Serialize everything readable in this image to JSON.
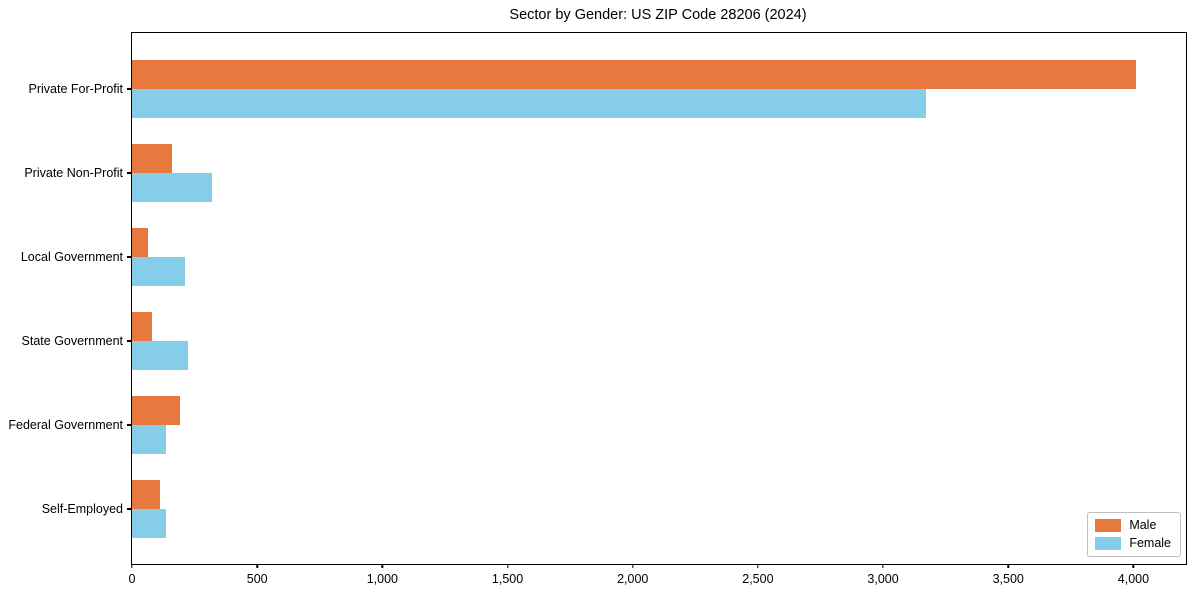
{
  "chart_data": {
    "type": "bar",
    "orientation": "horizontal",
    "title": "Sector by Gender: US ZIP Code 28206 (2024)",
    "categories": [
      "Private For-Profit",
      "Private Non-Profit",
      "Local Government",
      "State Government",
      "Federal Government",
      "Self-Employed"
    ],
    "series": [
      {
        "name": "Male",
        "color": "#e8793e",
        "values": [
          4010,
          160,
          65,
          80,
          190,
          110
        ]
      },
      {
        "name": "Female",
        "color": "#85cde8",
        "values": [
          3170,
          320,
          210,
          225,
          135,
          135
        ]
      }
    ],
    "xlabel": "",
    "ylabel": "",
    "xlim": [
      0,
      4210
    ],
    "x_ticks": [
      0,
      500,
      1000,
      1500,
      2000,
      2500,
      3000,
      3500,
      4000
    ],
    "x_tick_labels": [
      "0",
      "500",
      "1,000",
      "1,500",
      "2,000",
      "2,500",
      "3,000",
      "3,500",
      "4,000"
    ],
    "grid": false,
    "legend_position": "lower right",
    "axis_color": "#000000",
    "background_color": "#ffffff"
  }
}
